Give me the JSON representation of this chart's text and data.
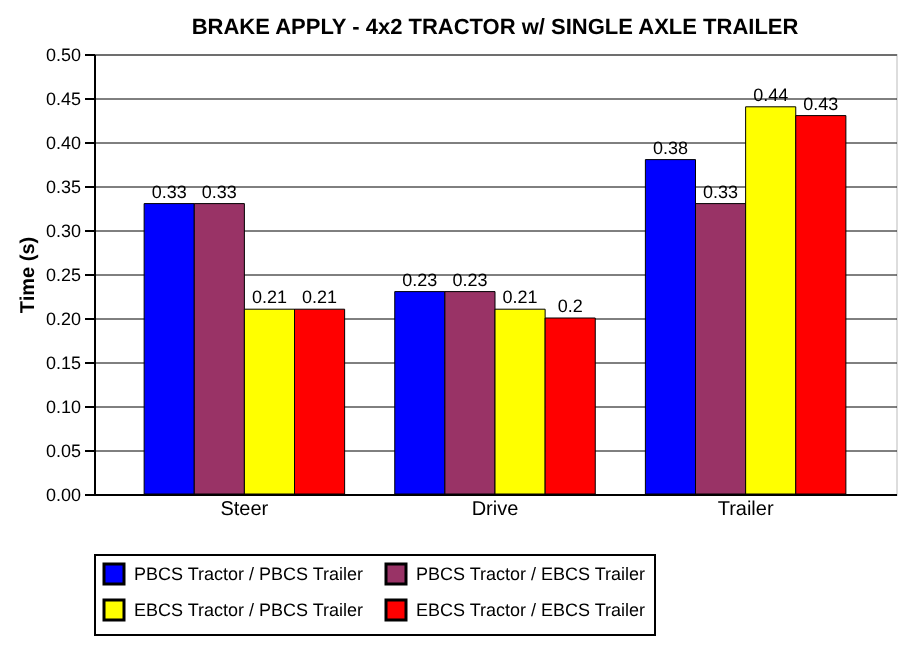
{
  "chart_data": {
    "type": "bar",
    "title": "BRAKE APPLY - 4x2 TRACTOR w/ SINGLE AXLE TRAILER",
    "ylabel": "Time (s)",
    "categories": [
      "Steer",
      "Drive",
      "Trailer"
    ],
    "series": [
      {
        "name": "PBCS Tractor / PBCS Trailer",
        "color": "#0000ff",
        "values": [
          0.33,
          0.23,
          0.38
        ]
      },
      {
        "name": "PBCS Tractor / EBCS Trailer",
        "color": "#993366",
        "values": [
          0.33,
          0.23,
          0.33
        ]
      },
      {
        "name": "EBCS Tractor / PBCS Trailer",
        "color": "#ffff00",
        "values": [
          0.21,
          0.21,
          0.44
        ]
      },
      {
        "name": "EBCS Tractor / EBCS Trailer",
        "color": "#ff0000",
        "values": [
          0.21,
          0.2,
          0.43
        ]
      }
    ],
    "ylim": [
      0,
      0.5
    ],
    "yticks": [
      {
        "value": 0,
        "label": "0.00"
      },
      {
        "value": 0.05,
        "label": "0.05"
      },
      {
        "value": 0.1,
        "label": "0.10"
      },
      {
        "value": 0.15,
        "label": "0.15"
      },
      {
        "value": 0.2,
        "label": "0.20"
      },
      {
        "value": 0.25,
        "label": "0.25"
      },
      {
        "value": 0.3,
        "label": "0.30"
      },
      {
        "value": 0.35,
        "label": "0.35"
      },
      {
        "value": 0.4,
        "label": "0.40"
      },
      {
        "value": 0.45,
        "label": "0.45"
      },
      {
        "value": 0.5,
        "label": "0.50"
      }
    ],
    "grid": "y",
    "legend": "bottom",
    "data_labels": true
  }
}
